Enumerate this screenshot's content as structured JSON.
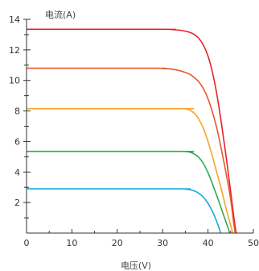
{
  "chart_data": {
    "type": "line",
    "title": "",
    "xlabel": "电压(V)",
    "ylabel": "电流(A)",
    "xlim": [
      0,
      50
    ],
    "ylim": [
      0,
      14
    ],
    "x_ticks": [
      0,
      10,
      20,
      30,
      40,
      50
    ],
    "y_ticks": [
      2,
      4,
      6,
      8,
      10,
      12,
      14
    ],
    "grid": false,
    "legend": "none",
    "series": [
      {
        "color": "#e8212a",
        "x": [
          0,
          30,
          32,
          34,
          36,
          37,
          38,
          39,
          40,
          41,
          42,
          43,
          44,
          45,
          45.8,
          46.2
        ],
        "y": [
          13.35,
          13.35,
          13.33,
          13.28,
          13.15,
          13.0,
          12.75,
          12.3,
          11.6,
          10.5,
          9.0,
          7.1,
          5.0,
          2.7,
          0.8,
          0
        ]
      },
      {
        "color": "#e8572a",
        "x": [
          0,
          28,
          30,
          32,
          34,
          36,
          37,
          38,
          39,
          40,
          41,
          42,
          43,
          44,
          45,
          45.6,
          46.0
        ],
        "y": [
          10.8,
          10.8,
          10.78,
          10.74,
          10.62,
          10.4,
          10.18,
          9.9,
          9.45,
          8.8,
          7.9,
          6.8,
          5.4,
          3.9,
          2.2,
          0.8,
          0
        ]
      },
      {
        "color": "#f5a42c",
        "x": [
          0,
          34,
          35,
          36,
          37,
          38,
          39,
          40,
          41,
          42,
          43,
          44,
          45,
          45.5
        ],
        "y": [
          8.15,
          8.15,
          8.14,
          8.05,
          7.85,
          7.45,
          6.85,
          6.0,
          5.0,
          3.9,
          2.8,
          1.6,
          0.5,
          0
        ]
      },
      {
        "color": "#2eab4a",
        "x": [
          0,
          34,
          35,
          36,
          37,
          38,
          39,
          40,
          41,
          42,
          43,
          44,
          44.8
        ],
        "y": [
          5.35,
          5.35,
          5.34,
          5.3,
          5.18,
          4.95,
          4.55,
          3.95,
          3.2,
          2.4,
          1.55,
          0.7,
          0
        ]
      },
      {
        "color": "#18a9d8",
        "x": [
          0,
          33,
          35,
          36,
          37,
          38,
          39,
          40,
          41,
          42,
          42.8
        ],
        "y": [
          2.9,
          2.9,
          2.88,
          2.84,
          2.76,
          2.6,
          2.35,
          1.95,
          1.4,
          0.7,
          0
        ]
      }
    ]
  }
}
